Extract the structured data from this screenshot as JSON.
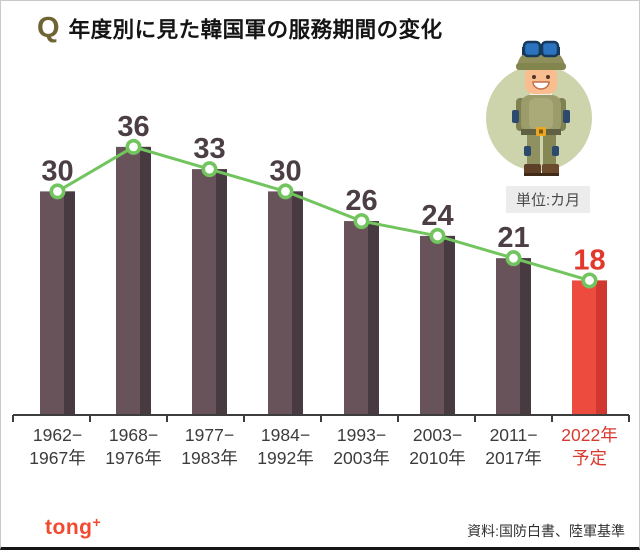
{
  "header": {
    "q_mark": "Q",
    "title": "年度別に見た韓国軍の服務期間の変化"
  },
  "unit_label": "単位:カ月",
  "footer": {
    "logo_text": "tong",
    "logo_plus": "+",
    "source": "資料:国防白書、陸軍基準"
  },
  "chart_data": {
    "type": "bar",
    "overlay": "line",
    "title": "年度別に見た韓国軍の服務期間の変化",
    "unit": "カ月",
    "categories": [
      [
        "1962−",
        "1967年"
      ],
      [
        "1968−",
        "1976年"
      ],
      [
        "1977−",
        "1983年"
      ],
      [
        "1984−",
        "1992年"
      ],
      [
        "1993−",
        "2003年"
      ],
      [
        "2003−",
        "2010年"
      ],
      [
        "2011−",
        "2017年"
      ],
      [
        "2022年",
        "予定"
      ]
    ],
    "values": [
      30,
      36,
      33,
      30,
      26,
      24,
      21,
      18
    ],
    "highlight_index": 7,
    "ylim": [
      0,
      40
    ],
    "legend": "none",
    "y_axis_visible": false,
    "colors": {
      "bar": "#68535a",
      "bar_shade": "#473a40",
      "bar_highlight": "#ee4b3f",
      "bar_highlight_shade": "#d0372e",
      "line": "#72c55e",
      "marker_fill": "#ffffff",
      "value_label": "#4b3e44",
      "value_label_highlight": "#e2392e",
      "axis": "#3d3d3d",
      "category_label": "#3c3c3c",
      "category_label_highlight": "#d93a2f"
    }
  }
}
